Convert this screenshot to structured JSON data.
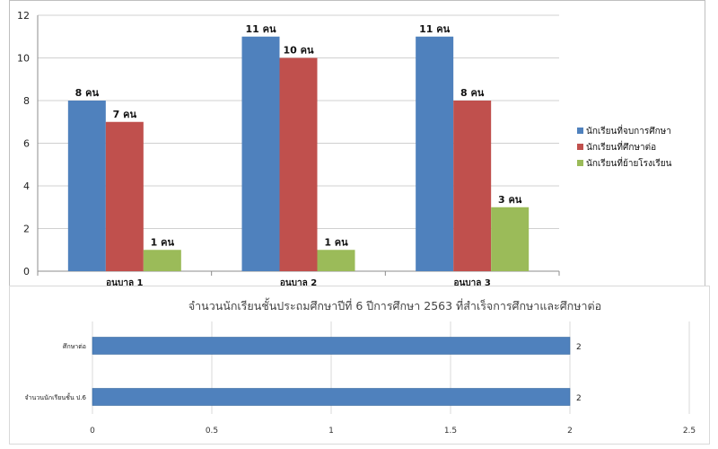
{
  "chart_data": [
    {
      "type": "bar",
      "categories": [
        "อนุบาล 1",
        "อนุบาล 2",
        "อนุบาล 3"
      ],
      "series": [
        {
          "name": "นักเรียนที่จบการศึกษา",
          "color": "#4f81bd",
          "values": [
            8,
            11,
            11
          ],
          "labels": [
            "8 คน",
            "11 คน",
            "11 คน"
          ]
        },
        {
          "name": "นักเรียนที่ศึกษาต่อ",
          "color": "#c0504d",
          "values": [
            7,
            10,
            8
          ],
          "labels": [
            "7 คน",
            "10 คน",
            "8 คน"
          ]
        },
        {
          "name": "นักเรียนที่ย้ายโรงเรียน",
          "color": "#9bbb59",
          "values": [
            1,
            1,
            3
          ],
          "labels": [
            "1 คน",
            "1 คน",
            "3 คน"
          ]
        }
      ],
      "ylim": [
        0,
        12
      ],
      "yticks": [
        "0",
        "2",
        "4",
        "6",
        "8",
        "10",
        "12"
      ],
      "grid": true,
      "legend": "right"
    },
    {
      "type": "bar",
      "orientation": "horizontal",
      "title": "จำนวนนักเรียนชั้นประถมศึกษาปีที่ 6 ปีการศึกษา 2563 ที่สำเร็จการศึกษาและศึกษาต่อ",
      "categories": [
        "ศึกษาต่อ",
        "จำนวนนักเรียนชั้น ป.6"
      ],
      "values": [
        2,
        2
      ],
      "labels": [
        "2",
        "2"
      ],
      "color": "#4f81bd",
      "xlim": [
        0,
        2.5
      ],
      "xticks": [
        "0",
        "0.5",
        "1",
        "1.5",
        "2",
        "2.5"
      ],
      "grid": true
    }
  ]
}
